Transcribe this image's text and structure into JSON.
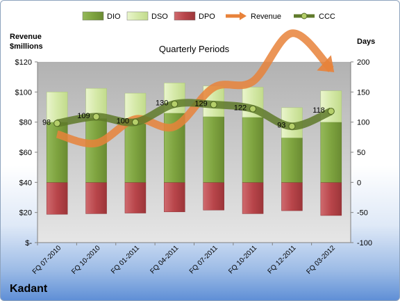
{
  "company": "Kadant",
  "chart_data": {
    "type": "bar",
    "title": "Quarterly Periods",
    "ylabel_left": "Revenue\n$millions",
    "ylabel_right": "Days",
    "categories": [
      "FQ 07-2010",
      "FQ 10-2010",
      "FQ 01-2011",
      "FQ 04-2011",
      "FQ 07-2011",
      "FQ 10-2011",
      "FQ 12-2011",
      "FQ 03-2012"
    ],
    "left_axis": {
      "ylim": [
        0,
        120
      ],
      "ticks": [
        0,
        20,
        40,
        60,
        80,
        100,
        120
      ],
      "tick_labels": [
        "$-",
        "$20",
        "$40",
        "$60",
        "$80",
        "$100",
        "$120"
      ]
    },
    "right_axis": {
      "ylim": [
        -100,
        200
      ],
      "ticks": [
        -100,
        -50,
        0,
        50,
        100,
        150,
        200
      ],
      "tick_labels": [
        "-100",
        "-50",
        "0",
        "50",
        "100",
        "150",
        "200"
      ]
    },
    "series": [
      {
        "name": "DIO",
        "axis": "right",
        "kind": "stacked-bar",
        "color": "#7ea33f",
        "values": [
          100,
          106,
          98,
          115,
          109,
          108,
          74,
          100
        ]
      },
      {
        "name": "DSO",
        "axis": "right",
        "kind": "stacked-bar",
        "color": "#d9ebb0",
        "values": [
          50,
          50,
          50,
          50,
          51,
          50,
          50,
          52
        ]
      },
      {
        "name": "DPO",
        "axis": "right",
        "kind": "bar-negative",
        "color": "#b8454a",
        "values": [
          -53,
          -52,
          -51,
          -49,
          -46,
          -52,
          -47,
          -55
        ]
      },
      {
        "name": "Revenue",
        "axis": "left",
        "kind": "line",
        "color": "#e8823a",
        "values": [
          72,
          66,
          82,
          77,
          103,
          107,
          139,
          115
        ]
      },
      {
        "name": "CCC",
        "axis": "right",
        "kind": "line",
        "color": "#5f7a2a",
        "values": [
          98,
          109,
          100,
          130,
          129,
          122,
          93,
          118
        ]
      }
    ],
    "data_labels": [
      "98",
      "109",
      "100",
      "130",
      "129",
      "122",
      "93",
      "118"
    ],
    "legend_position": "top",
    "grid": false
  }
}
